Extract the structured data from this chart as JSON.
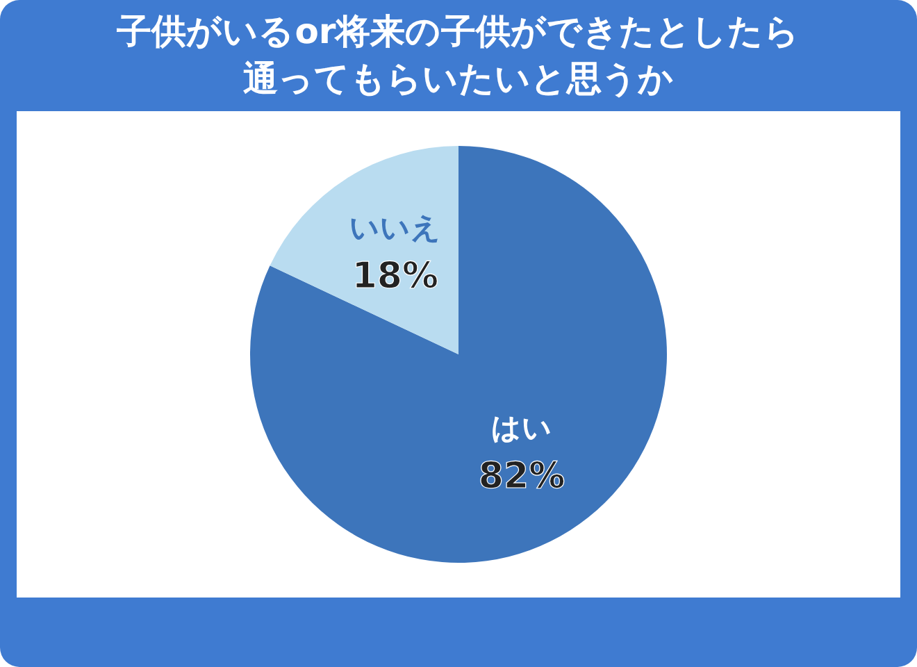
{
  "chart_data": {
    "type": "pie",
    "title": "子供がいるor将来の子供ができたとしたら通ってもらいたいと思うか",
    "categories": [
      "はい",
      "いいえ"
    ],
    "values": [
      82,
      18
    ],
    "colors": [
      "#3d75bb",
      "#b9dcf0"
    ],
    "value_labels": [
      "82%",
      "18%"
    ]
  }
}
